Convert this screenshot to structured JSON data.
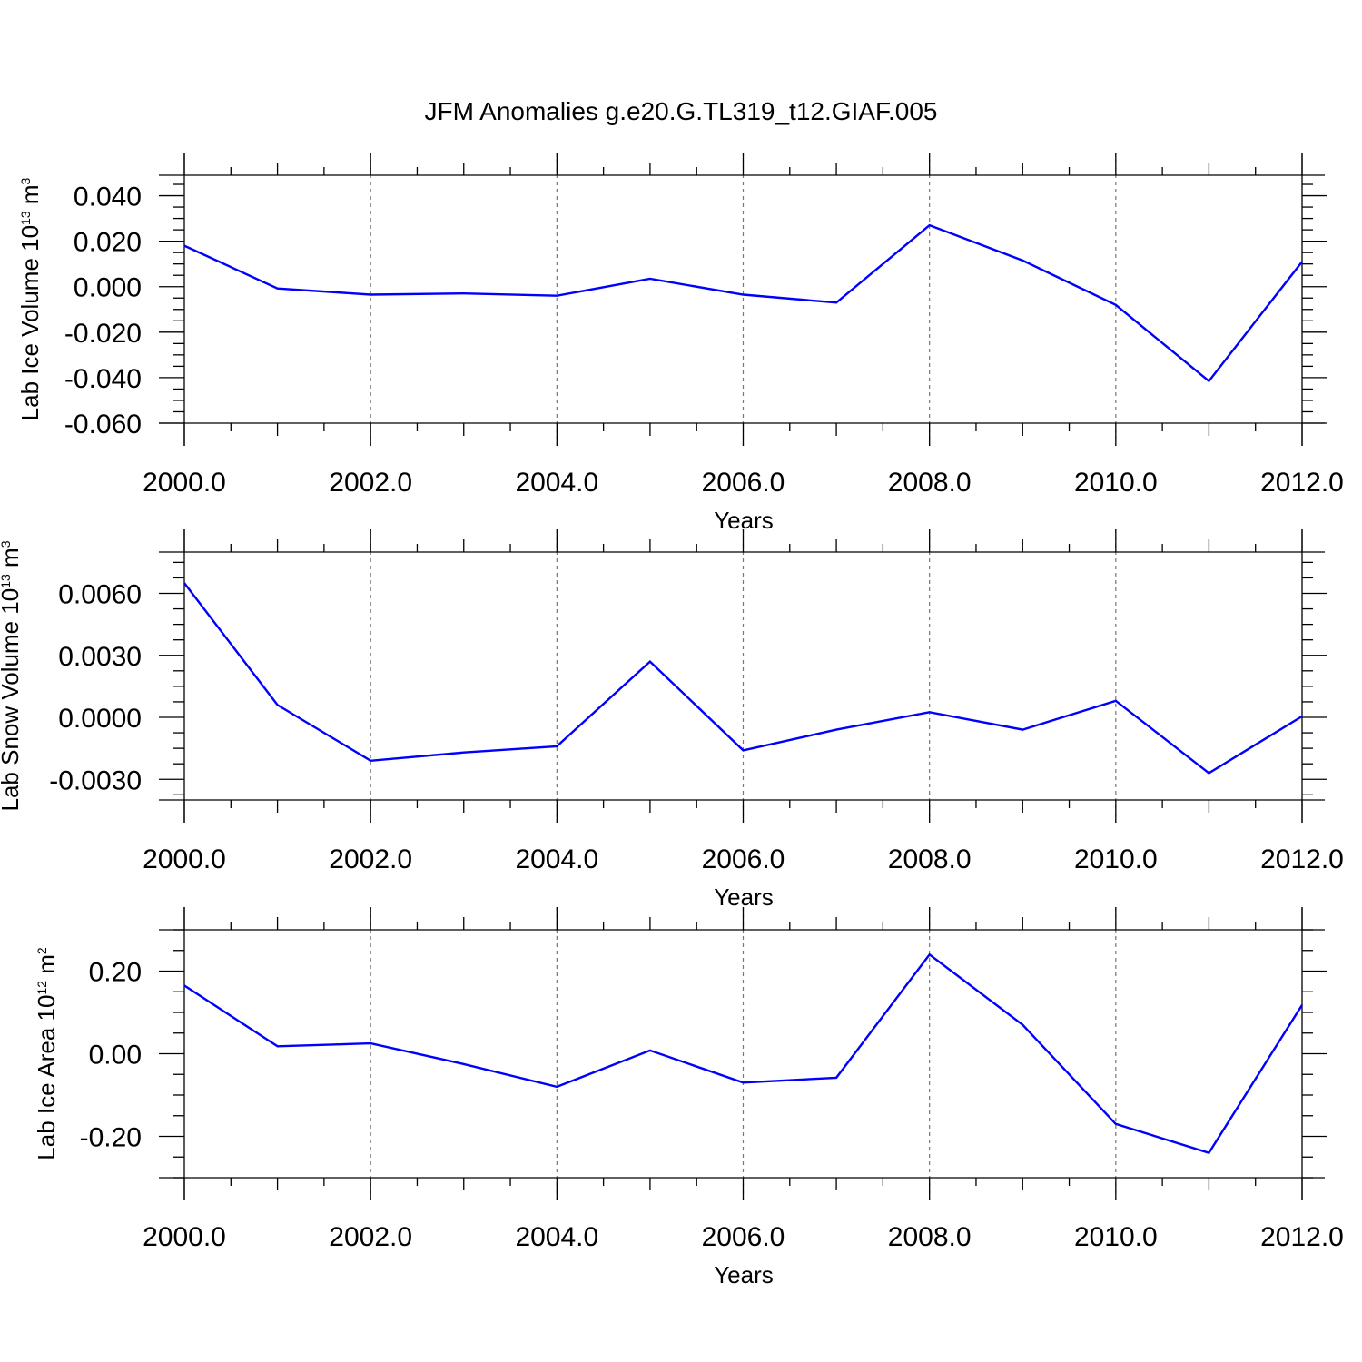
{
  "title": "JFM Anomalies g.e20.G.TL319_t12.GIAF.005",
  "colors": {
    "series": "#0000ff",
    "axis": "#000000",
    "grid": "#777777"
  },
  "chart_data": [
    {
      "type": "line",
      "ylabel": {
        "text": "Lab Ice Volume 10",
        "sup": "13",
        "mid": " m",
        "sup2": "3"
      },
      "xlabel": "Years",
      "x": [
        2000,
        2001,
        2002,
        2003,
        2004,
        2005,
        2006,
        2007,
        2008,
        2009,
        2010,
        2011,
        2012
      ],
      "values": [
        0.018,
        -0.0008,
        -0.0035,
        -0.003,
        -0.004,
        0.0035,
        -0.0035,
        -0.007,
        0.027,
        0.0115,
        -0.008,
        -0.0415,
        0.011
      ],
      "xlim": [
        2000,
        2012
      ],
      "ylim": [
        -0.06,
        0.049
      ],
      "xticks": [
        2000,
        2002,
        2004,
        2006,
        2008,
        2010,
        2012
      ],
      "xtick_labels": [
        "2000.0",
        "2002.0",
        "2004.0",
        "2006.0",
        "2008.0",
        "2010.0",
        "2012.0"
      ],
      "yticks": [
        0.04,
        0.02,
        0.0,
        -0.02,
        -0.04,
        -0.06
      ],
      "ytick_labels": [
        "0.040",
        "0.020",
        "0.000",
        "-0.020",
        "-0.040",
        "-0.060"
      ],
      "grid": "vertical dashed at major x ticks"
    },
    {
      "type": "line",
      "ylabel": {
        "text": "Lab Snow Volume 10",
        "sup": "13",
        "mid": " m",
        "sup2": "3"
      },
      "xlabel": "Years",
      "x": [
        2000,
        2001,
        2002,
        2003,
        2004,
        2005,
        2006,
        2007,
        2008,
        2009,
        2010,
        2011,
        2012
      ],
      "values": [
        0.0065,
        0.0006,
        -0.0021,
        -0.0017,
        -0.0014,
        0.0027,
        -0.0016,
        -0.0006,
        0.00025,
        -0.0006,
        0.0008,
        -0.0027,
        5e-05
      ],
      "xlim": [
        2000,
        2012
      ],
      "ylim": [
        -0.004,
        0.008
      ],
      "xticks": [
        2000,
        2002,
        2004,
        2006,
        2008,
        2010,
        2012
      ],
      "xtick_labels": [
        "2000.0",
        "2002.0",
        "2004.0",
        "2006.0",
        "2008.0",
        "2010.0",
        "2012.0"
      ],
      "yticks": [
        0.006,
        0.003,
        0.0,
        -0.003
      ],
      "ytick_labels": [
        "0.0060",
        "0.0030",
        "0.0000",
        "-0.0030"
      ],
      "grid": "vertical dashed at major x ticks"
    },
    {
      "type": "line",
      "ylabel": {
        "text": "Lab Ice Area 10",
        "sup": "12",
        "mid": " m",
        "sup2": "2"
      },
      "xlabel": "Years",
      "x": [
        2000,
        2001,
        2002,
        2003,
        2004,
        2005,
        2006,
        2007,
        2008,
        2009,
        2010,
        2011,
        2012
      ],
      "values": [
        0.165,
        0.018,
        0.025,
        -0.025,
        -0.08,
        0.008,
        -0.07,
        -0.058,
        0.24,
        0.07,
        -0.17,
        -0.24,
        0.118
      ],
      "xlim": [
        2000,
        2012
      ],
      "ylim": [
        -0.3,
        0.3
      ],
      "xticks": [
        2000,
        2002,
        2004,
        2006,
        2008,
        2010,
        2012
      ],
      "xtick_labels": [
        "2000.0",
        "2002.0",
        "2004.0",
        "2006.0",
        "2008.0",
        "2010.0",
        "2012.0"
      ],
      "yticks": [
        0.2,
        0.0,
        -0.2
      ],
      "ytick_labels": [
        "0.20",
        "0.00",
        "-0.20"
      ],
      "grid": "vertical dashed at major x ticks"
    }
  ]
}
